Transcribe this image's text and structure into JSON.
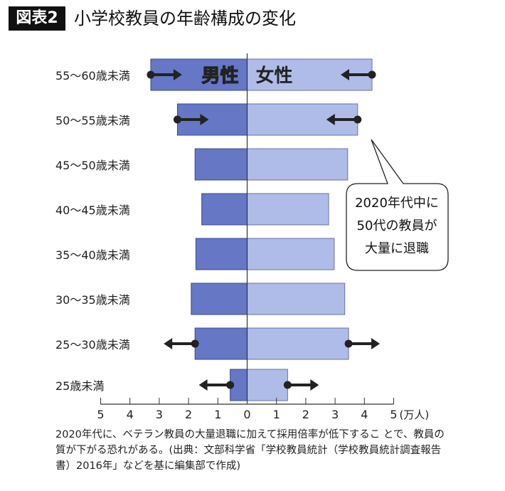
{
  "figure_label": "図表2",
  "title": "小学校教員の年齢構成の変化",
  "chart_data": {
    "type": "bar",
    "orientation": "horizontal-pyramid",
    "categories": [
      "55〜60歳未満",
      "50〜55歳未満",
      "45〜50歳未満",
      "40〜45歳未満",
      "35〜40歳未満",
      "30〜35歳未満",
      "25〜30歳未満",
      "25歳未満"
    ],
    "series": [
      {
        "name": "男性",
        "side": "left",
        "color": "#6677c6",
        "values": [
          3.29,
          2.38,
          1.78,
          1.55,
          1.75,
          1.91,
          1.78,
          0.58
        ]
      },
      {
        "name": "女性",
        "side": "right",
        "color": "#b0bce8",
        "values": [
          4.26,
          3.77,
          3.43,
          2.78,
          2.97,
          3.33,
          3.46,
          1.38
        ]
      }
    ],
    "x_ticks_left": [
      "5",
      "4",
      "3",
      "2",
      "1",
      "0"
    ],
    "x_ticks_right": [
      "1",
      "2",
      "3",
      "4",
      "5"
    ],
    "xlabel": "(万人)",
    "xlim": [
      0,
      5
    ],
    "arrows": [
      {
        "category": "55〜60歳未満",
        "side": "left",
        "direction": "inward"
      },
      {
        "category": "55〜60歳未満",
        "side": "right",
        "direction": "inward"
      },
      {
        "category": "50〜55歳未満",
        "side": "left",
        "direction": "inward"
      },
      {
        "category": "50〜55歳未満",
        "side": "right",
        "direction": "inward"
      },
      {
        "category": "25〜30歳未満",
        "side": "left",
        "direction": "outward"
      },
      {
        "category": "25〜30歳未満",
        "side": "right",
        "direction": "outward"
      },
      {
        "category": "25歳未満",
        "side": "left",
        "direction": "outward"
      },
      {
        "category": "25歳未満",
        "side": "right",
        "direction": "outward"
      }
    ],
    "callout": [
      "2020年代中に",
      "50代の教員が",
      "大量に退職"
    ]
  },
  "note": "2020年代に、ベテラン教員の大量退職に加えて採用倍率が低下するこ とで、教員の質が下がる恐れがある。(出典：文部科学省「学校教員統計（学校教員統計調査報告書）2016年」などを基に編集部で作成)"
}
